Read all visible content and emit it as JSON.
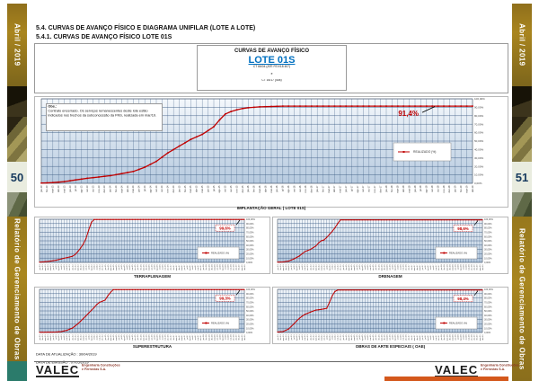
{
  "document": {
    "heading_1": "5.4.    CURVAS DE AVANÇO FÍSICO E DIAGRAMA UNIFILAR (LOTE A LOTE)",
    "heading_2": "5.4.1.    CURVAS DE AVANÇO FÍSICO LOTE 01S"
  },
  "sidebar_left": {
    "month": "Abril / 2019",
    "page_number": "50",
    "report_title": "Relatório de Gerenciamento de Obras"
  },
  "sidebar_right": {
    "month": "Abril / 2019",
    "page_number": "51",
    "report_title": "Relatório de Gerenciamento de Obras"
  },
  "title_box": {
    "heading": "CURVAS DE AVANÇO FÍSICO",
    "lote": "LOTE 01S",
    "contract_1": "CT 66/04 (ATÉ FEV/18 407)",
    "separator": "e",
    "contract_2": "CT 16/17 (408)"
  },
  "note": {
    "label": "Obs.:",
    "text": "Contrato encerrado. Os serviços remanescentes deste lote estão indicados nos trechos da subconcessão da FNS, realizada em mar/19."
  },
  "footer": {
    "update_line": "DATA DE ATUALIZAÇÃO : 30/04/2019",
    "issue_line": "DATA DE EMISSÃO : 07/05/2019",
    "logo_text": "VALEC",
    "logo_subtitle_1": "Engenharia Construções",
    "logo_subtitle_2": "e Ferrovias S.A."
  },
  "chart_shared": {
    "type": "line",
    "x_months": 76,
    "x_start_year": 13,
    "month_names": [
      "jan",
      "fev",
      "mar",
      "abr",
      "mai",
      "jun",
      "jul",
      "ago",
      "set",
      "out",
      "nov",
      "dez"
    ],
    "y_tick_labels": [
      "0,00%",
      "10,00%",
      "20,00%",
      "30,00%",
      "40,00%",
      "50,00%",
      "60,00%",
      "70,00%",
      "80,00%",
      "90,00%",
      "100,00%"
    ],
    "ylim": [
      0,
      100
    ],
    "legend_label": "REALIZADO (%)",
    "line_color": "#c00000",
    "grid_color": "#3a5a82",
    "plot_bg_top": "#f4f8fc",
    "plot_bg_bottom": "#b6cadf"
  },
  "chart_data": [
    {
      "caption": "IMPLANTAÇÃO GERAL ( LOTE 01S)",
      "final_value": 91.4,
      "final_label": "91,4%",
      "points": [
        [
          0,
          0.3
        ],
        [
          2,
          0.8
        ],
        [
          4,
          2
        ],
        [
          6,
          4
        ],
        [
          8,
          6
        ],
        [
          10,
          7.5
        ],
        [
          12,
          9
        ],
        [
          14,
          11.5
        ],
        [
          16,
          14
        ],
        [
          18,
          19
        ],
        [
          20,
          26
        ],
        [
          22,
          36
        ],
        [
          24,
          44
        ],
        [
          26,
          52
        ],
        [
          28,
          58
        ],
        [
          30,
          67
        ],
        [
          31,
          75
        ],
        [
          32,
          82
        ],
        [
          33,
          85
        ],
        [
          34,
          87
        ],
        [
          35,
          88.5
        ],
        [
          36,
          89.5
        ],
        [
          38,
          90.5
        ],
        [
          40,
          91
        ],
        [
          42,
          91.4
        ],
        [
          75,
          91.4
        ]
      ]
    },
    {
      "caption": "TERRAPLENAGEM",
      "final_value": 99.6,
      "final_label": "99,6%",
      "points": [
        [
          0,
          0.5
        ],
        [
          3,
          2
        ],
        [
          6,
          5
        ],
        [
          8,
          8
        ],
        [
          10,
          11
        ],
        [
          12,
          14
        ],
        [
          13,
          18
        ],
        [
          14,
          25
        ],
        [
          15,
          33
        ],
        [
          16,
          42
        ],
        [
          17,
          55
        ],
        [
          18,
          75
        ],
        [
          19,
          93
        ],
        [
          20,
          99.6
        ],
        [
          75,
          99.6
        ]
      ]
    },
    {
      "caption": "DRENAGEM",
      "final_value": 98.6,
      "final_label": "98,6%",
      "points": [
        [
          0,
          0.5
        ],
        [
          2,
          1
        ],
        [
          4,
          3
        ],
        [
          6,
          8
        ],
        [
          8,
          15
        ],
        [
          10,
          25
        ],
        [
          12,
          30
        ],
        [
          14,
          38
        ],
        [
          15,
          45
        ],
        [
          16,
          50
        ],
        [
          17,
          52
        ],
        [
          18,
          58
        ],
        [
          19,
          65
        ],
        [
          20,
          72
        ],
        [
          21,
          80
        ],
        [
          22,
          90
        ],
        [
          23,
          98.6
        ],
        [
          75,
          98.6
        ]
      ]
    },
    {
      "caption": "SUPERESTRUTURA",
      "final_value": 99.3,
      "final_label": "99,3%",
      "points": [
        [
          0,
          0.5
        ],
        [
          6,
          1
        ],
        [
          8,
          2
        ],
        [
          10,
          5
        ],
        [
          12,
          10
        ],
        [
          14,
          20
        ],
        [
          16,
          32
        ],
        [
          18,
          45
        ],
        [
          20,
          58
        ],
        [
          21,
          65
        ],
        [
          22,
          70
        ],
        [
          24,
          75
        ],
        [
          25,
          85
        ],
        [
          26,
          93
        ],
        [
          27,
          99.3
        ],
        [
          75,
          99.3
        ]
      ]
    },
    {
      "caption": "OBRAS DE ARTE ESPECIAIS ( OAE)",
      "final_value": 98.4,
      "final_label": "98,4%",
      "points": [
        [
          0,
          1
        ],
        [
          2,
          2
        ],
        [
          4,
          8
        ],
        [
          5,
          14
        ],
        [
          6,
          20
        ],
        [
          7,
          27
        ],
        [
          8,
          33
        ],
        [
          9,
          38
        ],
        [
          10,
          42
        ],
        [
          12,
          47
        ],
        [
          14,
          52
        ],
        [
          16,
          53.5
        ],
        [
          18,
          56
        ],
        [
          19,
          70
        ],
        [
          20,
          85
        ],
        [
          21,
          95
        ],
        [
          22,
          98.4
        ],
        [
          75,
          98.4
        ]
      ]
    }
  ]
}
